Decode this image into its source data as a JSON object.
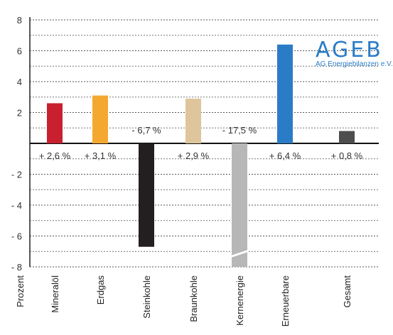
{
  "logo": {
    "name": "AGEB",
    "subtitle": "AG Energiebilanzen e.V."
  },
  "chart_data": {
    "type": "bar",
    "ylabel": "Prozent",
    "ylim": [
      -8,
      8
    ],
    "yticks": [
      8,
      6,
      4,
      2,
      -2,
      -4,
      -6,
      -8
    ],
    "ytick_labels": [
      "8",
      "6",
      "4",
      "2",
      "- 2",
      "- 4",
      "- 6",
      "- 8"
    ],
    "grid": true,
    "categories": [
      "Mineralöl",
      "Erdgas",
      "Steinkohle",
      "Braunkohle",
      "Kernenergie",
      "Erneuerbare",
      "Gesamt"
    ],
    "values": [
      2.6,
      3.1,
      -6.7,
      2.9,
      -17.5,
      6.4,
      0.8
    ],
    "value_labels": [
      "+ 2,6 %",
      "+ 3,1 %",
      "- 6,7 %",
      "+ 2,9 %",
      "- 17,5 %",
      "+ 6,4 %",
      "+ 0,8 %"
    ],
    "colors": [
      "#c8202f",
      "#f5a830",
      "#231f20",
      "#dfc59c",
      "#b7b7b7",
      "#2a7cc6",
      "#4d4d4d"
    ],
    "truncated": [
      false,
      false,
      false,
      false,
      true,
      false,
      false
    ]
  }
}
